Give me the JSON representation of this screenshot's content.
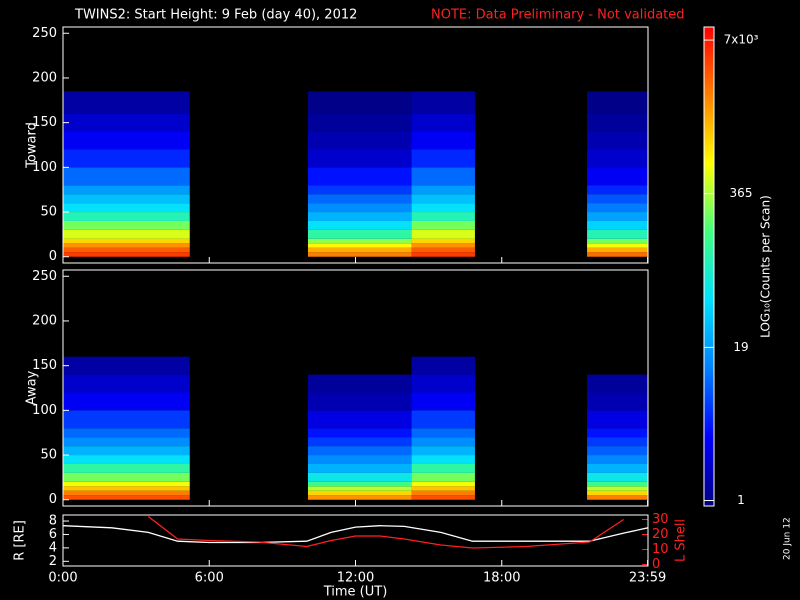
{
  "header": {
    "title": "TWINS2: Start Height:  9 Feb (day  40), 2012",
    "note": "NOTE: Data Preliminary - Not validated",
    "date_stamp": "20 Jun 12"
  },
  "colorbar": {
    "label": "LOG₁₀(Counts per Scan)",
    "log": true,
    "zlim": [
      0.9,
      9000
    ],
    "ticks": [
      1,
      19,
      365,
      {
        "value": 7000,
        "label": "7x10³"
      }
    ],
    "colormap": [
      "#00007f",
      "#0000ff",
      "#0080ff",
      "#00e0ff",
      "#40ff80",
      "#ffff00",
      "#ff8000",
      "#ff0000"
    ]
  },
  "chart_data": [
    {
      "type": "heatmap",
      "y_label": "Toward",
      "ylim": [
        -7,
        257
      ],
      "yticks": [
        0,
        50,
        100,
        150,
        200,
        250
      ],
      "xbins": [
        0,
        5.2,
        10.05,
        14.3,
        16.9,
        21.5,
        24
      ],
      "ybins": [
        0,
        5,
        10,
        15,
        20,
        30,
        40,
        50,
        60,
        70,
        80,
        100,
        120,
        140,
        160,
        185
      ],
      "values": [
        [
          5000,
          3500,
          2000,
          1000,
          500,
          250,
          100,
          50,
          30,
          18,
          10,
          5,
          3,
          2,
          1.3
        ],
        null,
        [
          2500,
          1500,
          700,
          300,
          120,
          50,
          25,
          15,
          10,
          6,
          4,
          2,
          1.5,
          1.2,
          1
        ],
        [
          5000,
          3500,
          2000,
          1000,
          500,
          250,
          100,
          50,
          30,
          18,
          10,
          5,
          3,
          2,
          1.3
        ],
        null,
        [
          3000,
          1500,
          600,
          250,
          100,
          40,
          20,
          12,
          8,
          5,
          3,
          2,
          1.5,
          1.2,
          1
        ]
      ]
    },
    {
      "type": "heatmap",
      "y_label": "Away",
      "ylim": [
        -7,
        257
      ],
      "yticks": [
        0,
        50,
        100,
        150,
        200,
        250
      ],
      "xbins": [
        0,
        5.2,
        10.05,
        14.3,
        16.9,
        21.5,
        24
      ],
      "ybins": [
        0,
        5,
        10,
        15,
        20,
        30,
        40,
        50,
        60,
        70,
        80,
        100,
        120,
        140,
        160,
        185
      ],
      "values": [
        [
          4000,
          2500,
          1200,
          600,
          250,
          120,
          50,
          25,
          15,
          10,
          6,
          3,
          2,
          1.3,
          null
        ],
        null,
        [
          2000,
          1000,
          400,
          150,
          60,
          25,
          15,
          10,
          6,
          4,
          2.5,
          1.5,
          1.2,
          null,
          null
        ],
        [
          4000,
          2500,
          1200,
          600,
          250,
          120,
          50,
          25,
          15,
          10,
          6,
          3,
          2,
          1.3,
          null
        ],
        null,
        [
          2500,
          1000,
          400,
          150,
          60,
          25,
          14,
          9,
          6,
          4,
          2.5,
          1.5,
          1.2,
          null,
          null
        ]
      ]
    },
    {
      "type": "line",
      "x_label": "Time (UT)",
      "y_label": "R [RE]",
      "y2_label": "L Shell",
      "xlim": [
        0,
        24
      ],
      "xticks": [
        {
          "value": 0,
          "label": "0:00"
        },
        {
          "value": 6,
          "label": "6:00"
        },
        {
          "value": 12,
          "label": "12:00"
        },
        {
          "value": 18,
          "label": "18:00"
        },
        {
          "value": 23.983,
          "label": "23:59"
        }
      ],
      "ylim": [
        1.3,
        8.9
      ],
      "yticks": [
        2,
        4,
        6,
        8
      ],
      "y2lim": [
        -1,
        33
      ],
      "y2ticks": [
        0,
        10,
        20,
        30
      ],
      "x": [
        0,
        2,
        3.5,
        4.7,
        6,
        8,
        10,
        11,
        12,
        13,
        14,
        15.5,
        16.8,
        19,
        21.6,
        23,
        24
      ],
      "series": [
        {
          "name": "R",
          "color": "#ffffff",
          "values": [
            7.3,
            7.0,
            6.3,
            5.0,
            4.8,
            4.8,
            5.0,
            6.3,
            7.1,
            7.3,
            7.2,
            6.3,
            5.0,
            5.0,
            5.0,
            6.2,
            7.0
          ]
        },
        {
          "name": "L Shell",
          "color": "#ff2020",
          "axis": "y2",
          "values": [
            null,
            null,
            32,
            17,
            16,
            15,
            12,
            16,
            19,
            19,
            17,
            13,
            11,
            12,
            15,
            30,
            null
          ]
        }
      ]
    }
  ]
}
